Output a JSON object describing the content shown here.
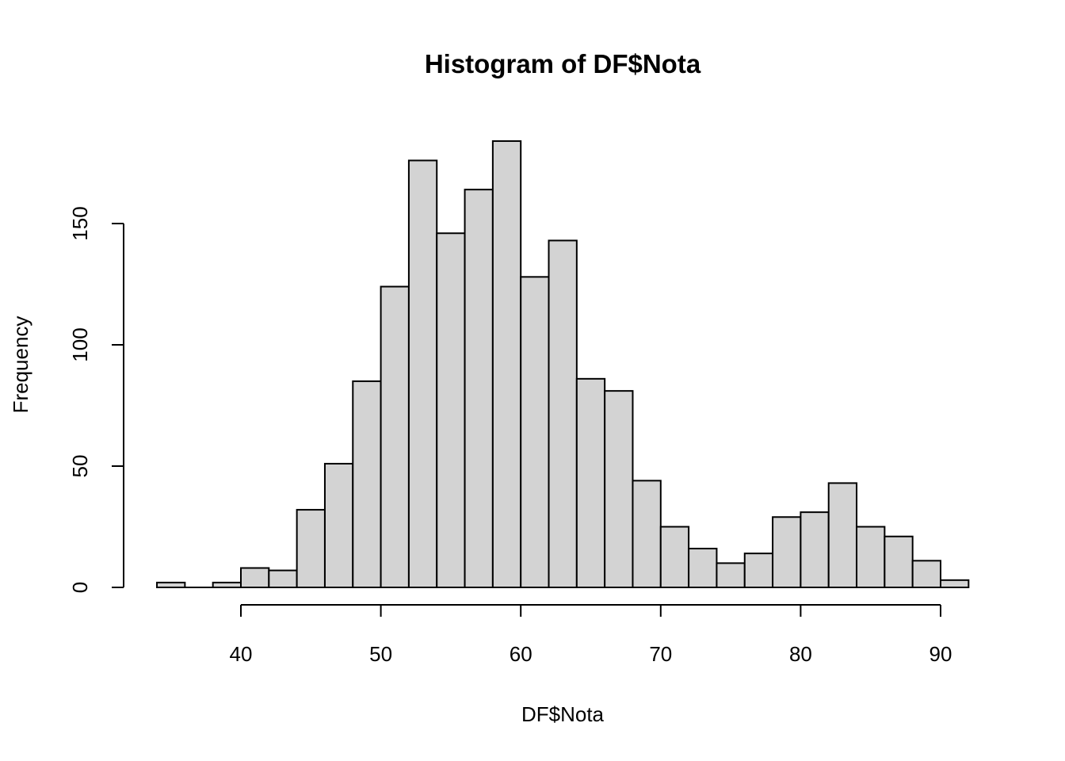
{
  "chart_data": {
    "type": "bar",
    "title": "Histogram of DF$Nota",
    "xlabel": "DF$Nota",
    "ylabel": "Frequency",
    "bin_width": 2,
    "bin_starts": [
      34,
      36,
      38,
      40,
      42,
      44,
      46,
      48,
      50,
      52,
      54,
      56,
      58,
      60,
      62,
      64,
      66,
      68,
      70,
      72,
      74,
      76,
      78,
      80,
      82,
      84,
      86,
      88,
      90
    ],
    "values": [
      2,
      0,
      2,
      8,
      7,
      32,
      51,
      85,
      124,
      176,
      146,
      164,
      184,
      128,
      143,
      86,
      81,
      44,
      25,
      16,
      10,
      14,
      29,
      31,
      43,
      25,
      21,
      11,
      3
    ],
    "xlim": [
      34,
      92
    ],
    "ylim": [
      0,
      184
    ],
    "x_ticks": [
      40,
      50,
      60,
      70,
      80,
      90
    ],
    "y_ticks": [
      0,
      50,
      100,
      150
    ],
    "x_tick_labels": [
      "40",
      "50",
      "60",
      "70",
      "80",
      "90"
    ],
    "y_tick_labels": [
      "0",
      "50",
      "100",
      "150"
    ],
    "grid": false,
    "colors": {
      "bar_fill": "#d3d3d3",
      "bar_stroke": "#000000"
    }
  }
}
